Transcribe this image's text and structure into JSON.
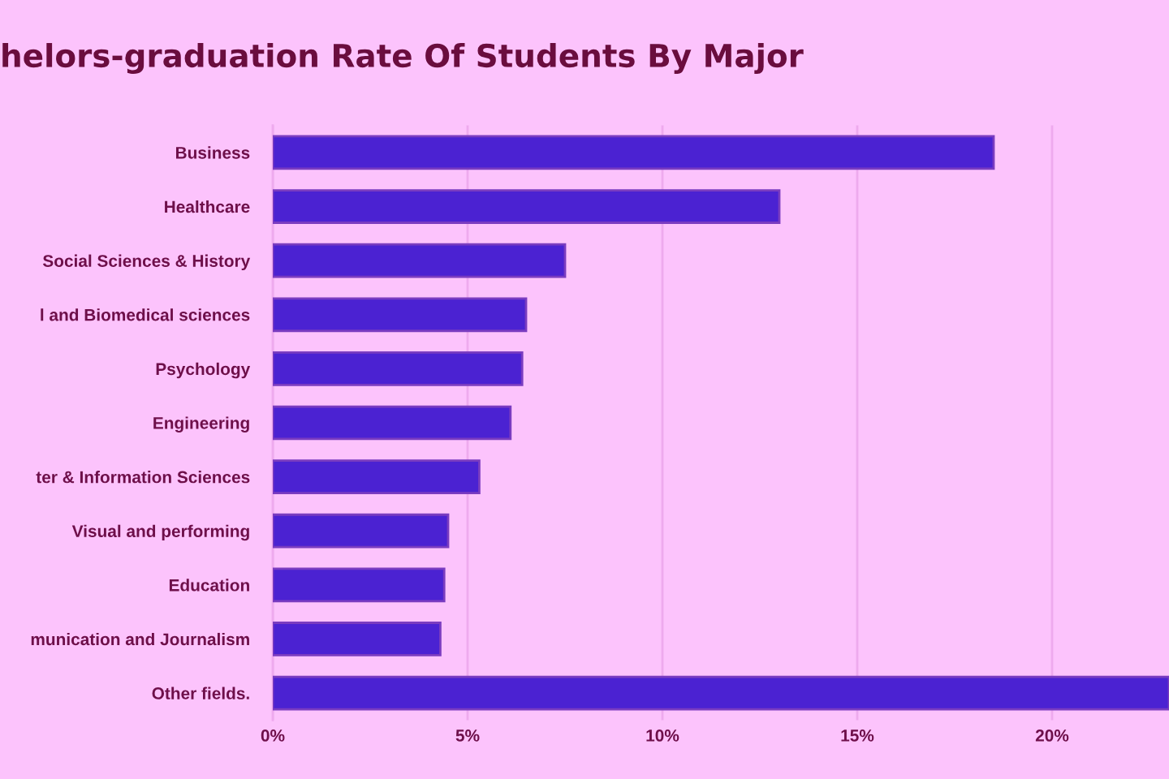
{
  "chart_data": {
    "type": "bar",
    "orientation": "horizontal",
    "title": "helors-graduation Rate Of Students By Major",
    "categories": [
      "Business",
      "Healthcare",
      "Social Sciences & History",
      "l and Biomedical sciences",
      "Psychology",
      "Engineering",
      "ter & Information Sciences",
      "Visual and performing",
      "Education",
      "munication and Journalism",
      "Other fields."
    ],
    "values": [
      18.5,
      13.0,
      7.5,
      6.5,
      6.4,
      6.1,
      5.3,
      4.5,
      4.4,
      4.3,
      23
    ],
    "color": "#4b22d2",
    "xlim": [
      0,
      23
    ],
    "xticks": [
      {
        "value": 0,
        "label": "0%"
      },
      {
        "value": 5,
        "label": "5%"
      },
      {
        "value": 10,
        "label": "10%"
      },
      {
        "value": 15,
        "label": "15%"
      },
      {
        "value": 20,
        "label": "20%"
      }
    ],
    "grid": "x",
    "legend": false
  }
}
